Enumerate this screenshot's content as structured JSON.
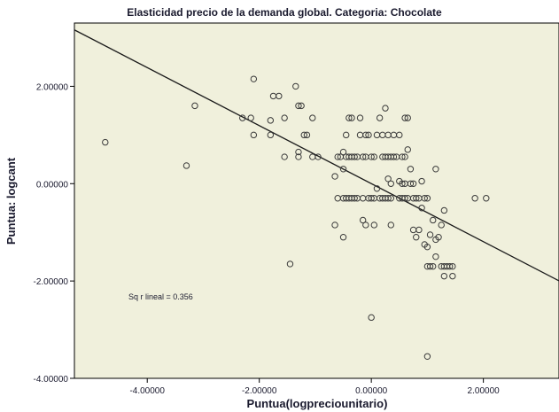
{
  "chart_data": {
    "type": "scatter",
    "title": "Elasticidad precio de la demanda global. Categoria: Chocolate",
    "xlabel": "Puntua(logpreciounitario)",
    "ylabel": "Puntua:  logcant",
    "xlim": [
      -5.3,
      3.35
    ],
    "ylim": [
      -4.0,
      3.3
    ],
    "x_ticks": [
      -4.0,
      -2.0,
      0.0,
      2.0
    ],
    "x_tick_labels": [
      "-4.00000",
      "-2.00000",
      "0.00000",
      "2.00000"
    ],
    "y_ticks": [
      -4.0,
      -2.0,
      0.0,
      2.0
    ],
    "y_tick_labels": [
      "-4.00000",
      "-2.00000",
      "0.00000",
      "2.00000"
    ],
    "annotation": "Sq r lineal = 0.356",
    "grid": false,
    "plot_background": "#f0f0dc",
    "marker_color": "#3a3a3a",
    "fit_line": {
      "intercept": 0.0,
      "slope": -0.596,
      "color": "#1a1a1a"
    },
    "points": [
      {
        "x": -4.75,
        "y": 0.85
      },
      {
        "x": -3.3,
        "y": 0.37
      },
      {
        "x": -3.15,
        "y": 1.6
      },
      {
        "x": -2.1,
        "y": 2.15
      },
      {
        "x": -2.3,
        "y": 1.35
      },
      {
        "x": -2.15,
        "y": 1.35
      },
      {
        "x": -2.1,
        "y": 1.0
      },
      {
        "x": -1.8,
        "y": 1.3
      },
      {
        "x": -1.75,
        "y": 1.8
      },
      {
        "x": -1.65,
        "y": 1.8
      },
      {
        "x": -1.55,
        "y": 1.35
      },
      {
        "x": -1.55,
        "y": 0.55
      },
      {
        "x": -1.8,
        "y": 1.0
      },
      {
        "x": -1.35,
        "y": 2.0
      },
      {
        "x": -1.3,
        "y": 1.6
      },
      {
        "x": -1.25,
        "y": 1.6
      },
      {
        "x": -1.05,
        "y": 1.35
      },
      {
        "x": -1.2,
        "y": 1.0
      },
      {
        "x": -1.15,
        "y": 1.0
      },
      {
        "x": -1.3,
        "y": 0.55
      },
      {
        "x": -1.05,
        "y": 0.55
      },
      {
        "x": -0.95,
        "y": 0.55
      },
      {
        "x": -1.3,
        "y": 0.65
      },
      {
        "x": -1.45,
        "y": -1.65
      },
      {
        "x": -0.65,
        "y": 0.15
      },
      {
        "x": -0.6,
        "y": 0.55
      },
      {
        "x": -0.55,
        "y": 0.55
      },
      {
        "x": -0.5,
        "y": 0.65
      },
      {
        "x": -0.45,
        "y": 0.55
      },
      {
        "x": -0.4,
        "y": 0.55
      },
      {
        "x": -0.35,
        "y": 0.55
      },
      {
        "x": -0.3,
        "y": 0.55
      },
      {
        "x": -0.25,
        "y": 0.55
      },
      {
        "x": -0.6,
        "y": -0.3
      },
      {
        "x": -0.5,
        "y": -0.3
      },
      {
        "x": -0.45,
        "y": -0.3
      },
      {
        "x": -0.4,
        "y": -0.3
      },
      {
        "x": -0.35,
        "y": -0.3
      },
      {
        "x": -0.3,
        "y": -0.3
      },
      {
        "x": -0.25,
        "y": -0.3
      },
      {
        "x": -0.5,
        "y": 0.3
      },
      {
        "x": -0.45,
        "y": 1.0
      },
      {
        "x": -0.35,
        "y": 1.35
      },
      {
        "x": -0.4,
        "y": 1.35
      },
      {
        "x": -0.2,
        "y": 1.0
      },
      {
        "x": -0.65,
        "y": -0.85
      },
      {
        "x": -0.5,
        "y": -1.1
      },
      {
        "x": -0.2,
        "y": 1.35
      },
      {
        "x": -0.15,
        "y": 0.55
      },
      {
        "x": -0.1,
        "y": 0.55
      },
      {
        "x": -0.15,
        "y": -0.3
      },
      {
        "x": -0.05,
        "y": -0.3
      },
      {
        "x": 0.0,
        "y": -0.3
      },
      {
        "x": 0.05,
        "y": -0.3
      },
      {
        "x": -0.15,
        "y": -0.75
      },
      {
        "x": -0.1,
        "y": -0.85
      },
      {
        "x": -0.1,
        "y": 1.0
      },
      {
        "x": -0.05,
        "y": 1.0
      },
      {
        "x": 0.0,
        "y": 0.55
      },
      {
        "x": 0.05,
        "y": 0.55
      },
      {
        "x": 0.1,
        "y": 1.0
      },
      {
        "x": 0.15,
        "y": 1.35
      },
      {
        "x": 0.2,
        "y": 1.0
      },
      {
        "x": 0.25,
        "y": 1.55
      },
      {
        "x": 0.1,
        "y": -0.1
      },
      {
        "x": 0.15,
        "y": -0.3
      },
      {
        "x": 0.2,
        "y": -0.3
      },
      {
        "x": 0.25,
        "y": -0.3
      },
      {
        "x": 0.3,
        "y": -0.3
      },
      {
        "x": 0.35,
        "y": -0.3
      },
      {
        "x": 0.05,
        "y": -0.85
      },
      {
        "x": 0.0,
        "y": -2.75
      },
      {
        "x": 0.2,
        "y": 0.55
      },
      {
        "x": 0.25,
        "y": 0.55
      },
      {
        "x": 0.3,
        "y": 0.55
      },
      {
        "x": 0.35,
        "y": 0.55
      },
      {
        "x": 0.4,
        "y": 0.55
      },
      {
        "x": 0.3,
        "y": 0.1
      },
      {
        "x": 0.35,
        "y": 0.0
      },
      {
        "x": 0.3,
        "y": 1.0
      },
      {
        "x": 0.4,
        "y": 1.0
      },
      {
        "x": 0.45,
        "y": 0.55
      },
      {
        "x": 0.5,
        "y": 0.05
      },
      {
        "x": 0.5,
        "y": -0.3
      },
      {
        "x": 0.55,
        "y": -0.3
      },
      {
        "x": 0.6,
        "y": -0.3
      },
      {
        "x": 0.55,
        "y": 0.0
      },
      {
        "x": 0.6,
        "y": 0.0
      },
      {
        "x": 0.5,
        "y": 1.0
      },
      {
        "x": 0.55,
        "y": 0.55
      },
      {
        "x": 0.6,
        "y": 0.55
      },
      {
        "x": 0.65,
        "y": 0.7
      },
      {
        "x": 0.6,
        "y": 1.35
      },
      {
        "x": 0.65,
        "y": 1.35
      },
      {
        "x": 0.7,
        "y": 0.3
      },
      {
        "x": 0.7,
        "y": 0.0
      },
      {
        "x": 0.75,
        "y": -0.3
      },
      {
        "x": 0.65,
        "y": -0.3
      },
      {
        "x": 0.35,
        "y": -0.85
      },
      {
        "x": 0.75,
        "y": -0.95
      },
      {
        "x": 0.8,
        "y": -1.1
      },
      {
        "x": 0.85,
        "y": -0.95
      },
      {
        "x": 0.75,
        "y": 0.0
      },
      {
        "x": 0.8,
        "y": -0.3
      },
      {
        "x": 0.85,
        "y": -0.3
      },
      {
        "x": 0.9,
        "y": 0.05
      },
      {
        "x": 0.95,
        "y": -0.3
      },
      {
        "x": 1.0,
        "y": -0.3
      },
      {
        "x": 0.9,
        "y": -0.5
      },
      {
        "x": 0.95,
        "y": -1.25
      },
      {
        "x": 1.0,
        "y": -1.3
      },
      {
        "x": 1.05,
        "y": -1.05
      },
      {
        "x": 1.1,
        "y": -0.75
      },
      {
        "x": 1.15,
        "y": -1.15
      },
      {
        "x": 1.0,
        "y": -1.7
      },
      {
        "x": 1.05,
        "y": -1.7
      },
      {
        "x": 1.1,
        "y": -1.7
      },
      {
        "x": 1.15,
        "y": -1.5
      },
      {
        "x": 1.2,
        "y": -1.1
      },
      {
        "x": 1.25,
        "y": -0.85
      },
      {
        "x": 1.15,
        "y": 0.3
      },
      {
        "x": 1.25,
        "y": -1.7
      },
      {
        "x": 1.3,
        "y": -1.7
      },
      {
        "x": 1.35,
        "y": -1.7
      },
      {
        "x": 1.4,
        "y": -1.7
      },
      {
        "x": 1.45,
        "y": -1.7
      },
      {
        "x": 1.3,
        "y": -1.9
      },
      {
        "x": 1.45,
        "y": -1.9
      },
      {
        "x": 1.3,
        "y": -0.55
      },
      {
        "x": 1.0,
        "y": -3.55
      },
      {
        "x": 1.85,
        "y": -0.3
      },
      {
        "x": 2.05,
        "y": -0.3
      }
    ]
  }
}
